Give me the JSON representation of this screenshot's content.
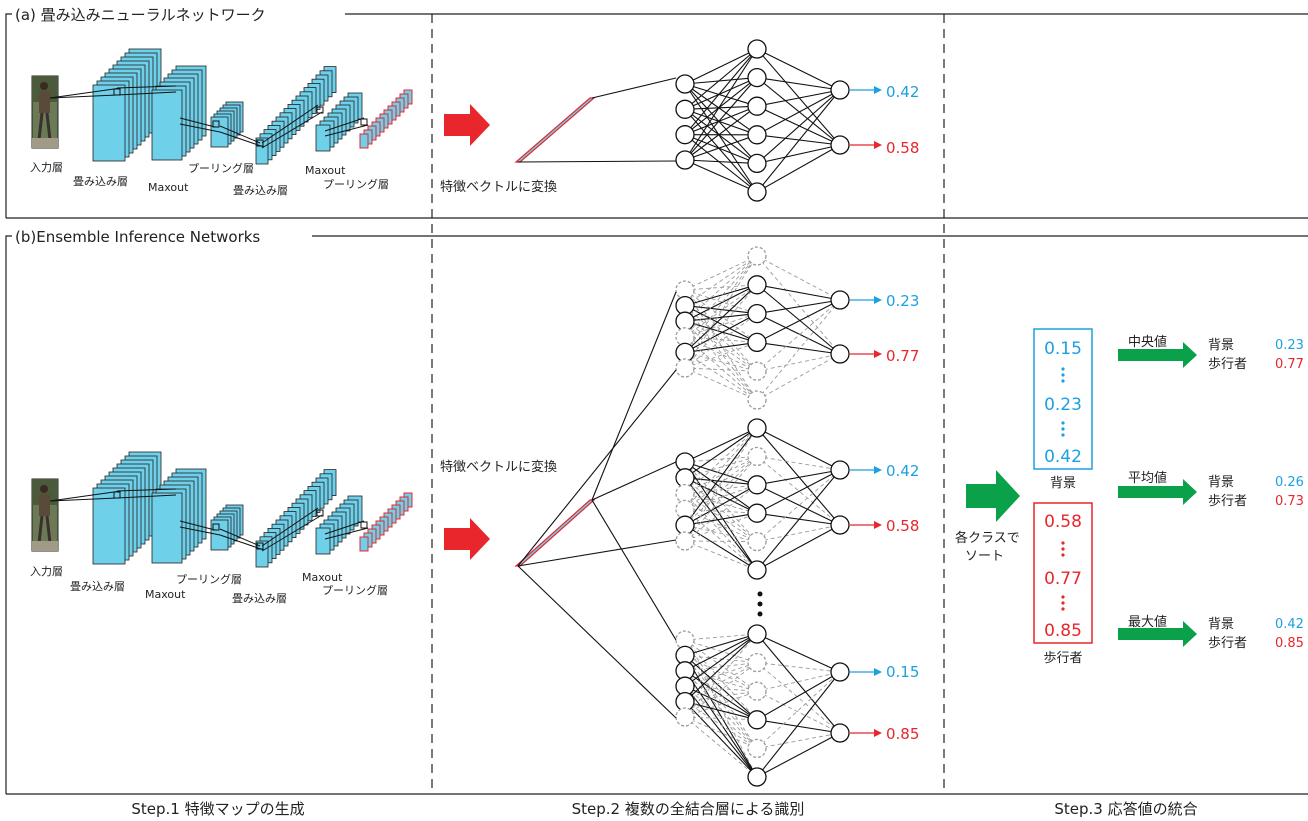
{
  "panel_a": {
    "title": "(a) 畳み込みニューラルネットワーク",
    "layers": {
      "input": "入力層",
      "conv": "畳み込み層",
      "maxout": "Maxout",
      "pool": "プーリング層",
      "conv2": "畳み込み層",
      "maxout2": "Maxout",
      "pool2": "プーリング層"
    },
    "feature_label": "特徴ベクトルに変換",
    "outputs": [
      "0.42",
      "0.58"
    ]
  },
  "panel_b": {
    "title": "(b)Ensemble Inference Networks",
    "layers": {
      "input": "入力層",
      "conv": "畳み込み層",
      "maxout": "Maxout",
      "pool": "プーリング層",
      "conv2": "畳み込み層",
      "maxout2": "Maxout",
      "pool2": "プーリング層"
    },
    "feature_label": "特徴ベクトルに変換",
    "outputs": [
      [
        "0.23",
        "0.77"
      ],
      [
        "0.42",
        "0.58"
      ],
      [
        "0.15",
        "0.85"
      ]
    ],
    "sort_label": [
      "各クラスで",
      "ソート"
    ],
    "background_box": {
      "values": [
        "0.15",
        "0.23",
        "0.42"
      ],
      "label": "背景"
    },
    "pedestrian_box": {
      "values": [
        "0.58",
        "0.77",
        "0.85"
      ],
      "label": "歩行者"
    },
    "results": [
      {
        "method": "中央値",
        "bg_label": "背景",
        "ped_label": "歩行者",
        "bg": "0.23",
        "ped": "0.77"
      },
      {
        "method": "平均値",
        "bg_label": "背景",
        "ped_label": "歩行者",
        "bg": "0.26",
        "ped": "0.73"
      },
      {
        "method": "最大値",
        "bg_label": "背景",
        "ped_label": "歩行者",
        "bg": "0.42",
        "ped": "0.85"
      }
    ]
  },
  "steps": [
    "Step.1 特徴マップの生成",
    "Step.2 複数の全結合層による識別",
    "Step.3 応答値の統合"
  ],
  "colors": {
    "blue": "#1ba1e2",
    "red": "#e8262c",
    "green": "#0aa14a",
    "map_fill": "#6fd0ea"
  }
}
